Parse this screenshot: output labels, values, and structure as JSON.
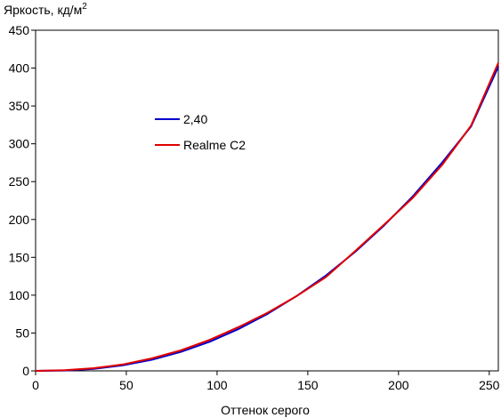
{
  "chart_data": {
    "type": "line",
    "title": "",
    "ylabel": "Яркость, кд/м",
    "ylabel_superscript": "2",
    "xlabel": "Оттенок серого",
    "xlim": [
      0,
      255
    ],
    "ylim": [
      0,
      450
    ],
    "xticks": [
      0,
      50,
      100,
      150,
      200,
      250
    ],
    "yticks": [
      0,
      50,
      100,
      150,
      200,
      250,
      300,
      350,
      400,
      450
    ],
    "grid": false,
    "legend": "upper-left-inside",
    "series": [
      {
        "name": "2,40",
        "color": "#0000cc",
        "x": [
          0,
          16,
          32,
          48,
          64,
          80,
          96,
          112,
          128,
          144,
          160,
          176,
          192,
          208,
          224,
          240,
          255
        ],
        "y": [
          0,
          0.5,
          2.7,
          7.3,
          14.7,
          25.0,
          38.5,
          55.5,
          75.5,
          99.0,
          126.0,
          157.0,
          192.0,
          231.0,
          275.0,
          323.0,
          402.0
        ]
      },
      {
        "name": "Realme C2",
        "color": "#e00000",
        "x": [
          0,
          16,
          32,
          48,
          64,
          80,
          96,
          112,
          128,
          144,
          160,
          176,
          192,
          208,
          224,
          240,
          255
        ],
        "y": [
          0,
          0.8,
          3.5,
          8.5,
          16.5,
          27.0,
          41.0,
          58.0,
          77.0,
          99.0,
          124.0,
          158.0,
          193.0,
          229.0,
          272.0,
          324.0,
          407.0
        ]
      }
    ]
  }
}
